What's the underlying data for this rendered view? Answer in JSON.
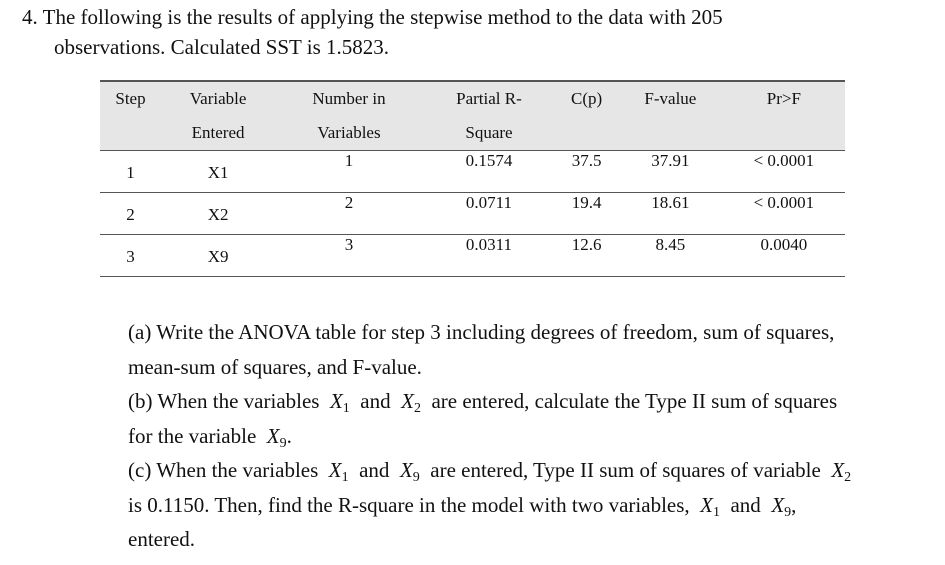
{
  "question": {
    "number": "4.",
    "line1": "The following is the results of applying the stepwise method to the data with 205",
    "line2": "observations. Calculated SST is 1.5823."
  },
  "table": {
    "headers": [
      [
        "Step",
        ""
      ],
      [
        "Variable",
        "Entered"
      ],
      [
        "Number in",
        "Variables"
      ],
      [
        "Partial R-",
        "Square"
      ],
      [
        "C(p)",
        ""
      ],
      [
        "F-value",
        ""
      ],
      [
        "Pr>F",
        ""
      ]
    ],
    "rows": [
      [
        "1",
        "X1",
        "1",
        "0.1574",
        "37.5",
        "37.91",
        "< 0.0001"
      ],
      [
        "2",
        "X2",
        "2",
        "0.0711",
        "19.4",
        "18.61",
        "< 0.0001"
      ],
      [
        "3",
        "X9",
        "3",
        "0.0311",
        "12.6",
        "8.45",
        "0.0040"
      ]
    ]
  },
  "parts": {
    "a": {
      "label": "(a)",
      "l1": "Write the ANOVA table for step 3 including degrees of freedom, sum of squares,",
      "l2": "mean-sum of squares, and F-value."
    },
    "b": {
      "label": "(b)",
      "t1": "When the variables",
      "v1": "X",
      "s1": "1",
      "and": "and",
      "v2": "X",
      "s2": "2",
      "t2": "are entered, calculate the Type II sum of squares",
      "t3": "for the variable",
      "v3": "X",
      "s3": "9",
      "end": "."
    },
    "c": {
      "label": "(c)",
      "t1": "When the variables",
      "v1": "X",
      "s1": "1",
      "and": "and",
      "v2": "X",
      "s2": "9",
      "t2": "are entered, Type II sum of squares of variable",
      "v3": "X",
      "s3": "2",
      "t3": "is 0.1150. Then, find the R-square in the model with two variables,",
      "v4": "X",
      "s4": "1",
      "and2": "and",
      "v5": "X",
      "s5": "9",
      "comma": ",",
      "t4": "entered."
    }
  }
}
